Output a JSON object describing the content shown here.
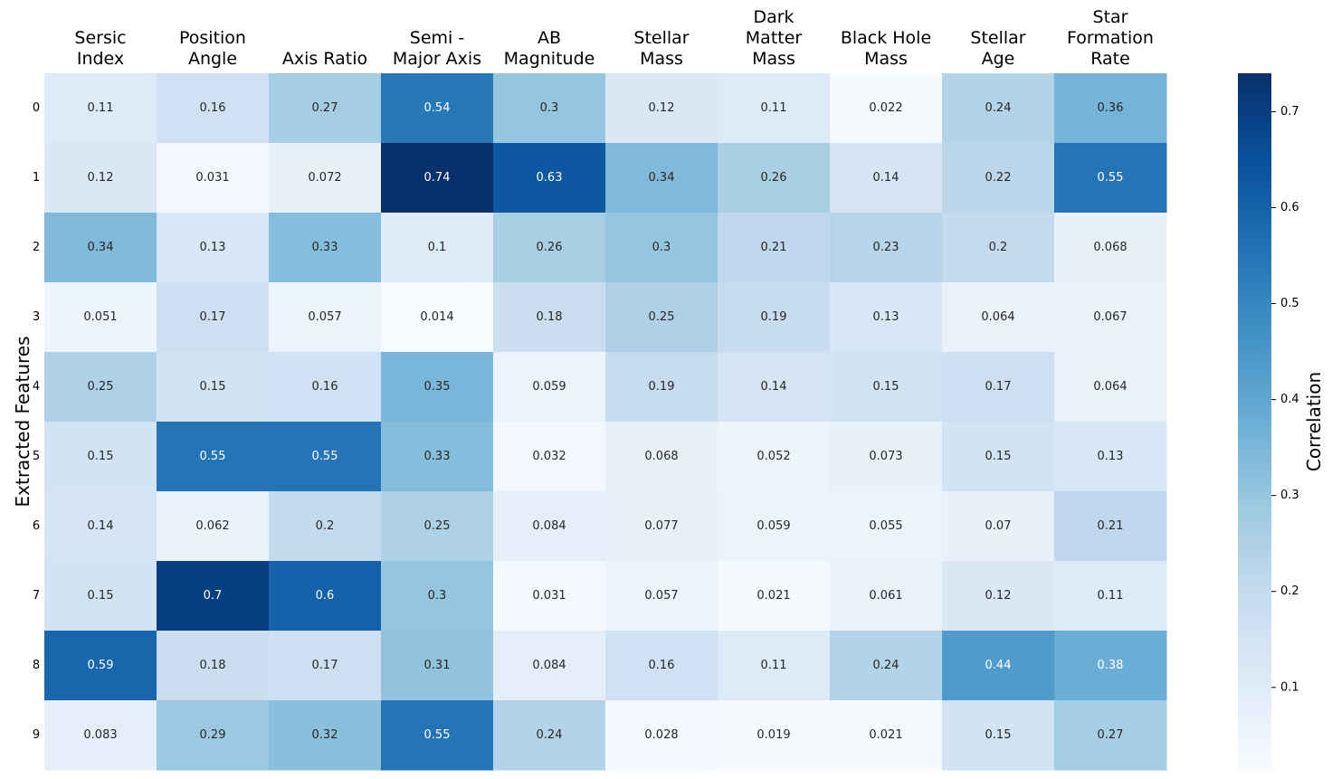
{
  "chart_data": {
    "type": "heatmap",
    "title": "",
    "xlabel": "",
    "ylabel": "Extracted Features",
    "colorbar_label": "Correlation",
    "colormap": "Blues",
    "vmin": 0.014,
    "vmax": 0.74,
    "colorbar_ticks": [
      0.1,
      0.2,
      0.3,
      0.4,
      0.5,
      0.6,
      0.7
    ],
    "columns": [
      [
        "Sersic",
        "Index"
      ],
      [
        "Position",
        "Angle"
      ],
      [
        "Axis Ratio"
      ],
      [
        "Semi -",
        "Major Axis"
      ],
      [
        "AB",
        "Magnitude"
      ],
      [
        "Stellar",
        "Mass"
      ],
      [
        "Dark",
        "Matter",
        "Mass"
      ],
      [
        "Black Hole",
        "Mass"
      ],
      [
        "Stellar",
        "Age"
      ],
      [
        "Star",
        "Formation",
        "Rate"
      ]
    ],
    "rows": [
      "0",
      "1",
      "2",
      "3",
      "4",
      "5",
      "6",
      "7",
      "8",
      "9"
    ],
    "values": [
      [
        0.11,
        0.16,
        0.27,
        0.54,
        0.3,
        0.12,
        0.11,
        0.022,
        0.24,
        0.36
      ],
      [
        0.12,
        0.031,
        0.072,
        0.74,
        0.63,
        0.34,
        0.26,
        0.14,
        0.22,
        0.55
      ],
      [
        0.34,
        0.13,
        0.33,
        0.1,
        0.26,
        0.3,
        0.21,
        0.23,
        0.2,
        0.068
      ],
      [
        0.051,
        0.17,
        0.057,
        0.014,
        0.18,
        0.25,
        0.19,
        0.13,
        0.064,
        0.067
      ],
      [
        0.25,
        0.15,
        0.16,
        0.35,
        0.059,
        0.19,
        0.14,
        0.15,
        0.17,
        0.064
      ],
      [
        0.15,
        0.55,
        0.55,
        0.33,
        0.032,
        0.068,
        0.052,
        0.073,
        0.15,
        0.13
      ],
      [
        0.14,
        0.062,
        0.2,
        0.25,
        0.084,
        0.077,
        0.059,
        0.055,
        0.07,
        0.21
      ],
      [
        0.15,
        0.7,
        0.6,
        0.3,
        0.031,
        0.057,
        0.021,
        0.061,
        0.12,
        0.11
      ],
      [
        0.59,
        0.18,
        0.17,
        0.31,
        0.084,
        0.16,
        0.11,
        0.24,
        0.44,
        0.38
      ],
      [
        0.083,
        0.29,
        0.32,
        0.55,
        0.24,
        0.028,
        0.019,
        0.021,
        0.15,
        0.27
      ]
    ]
  }
}
